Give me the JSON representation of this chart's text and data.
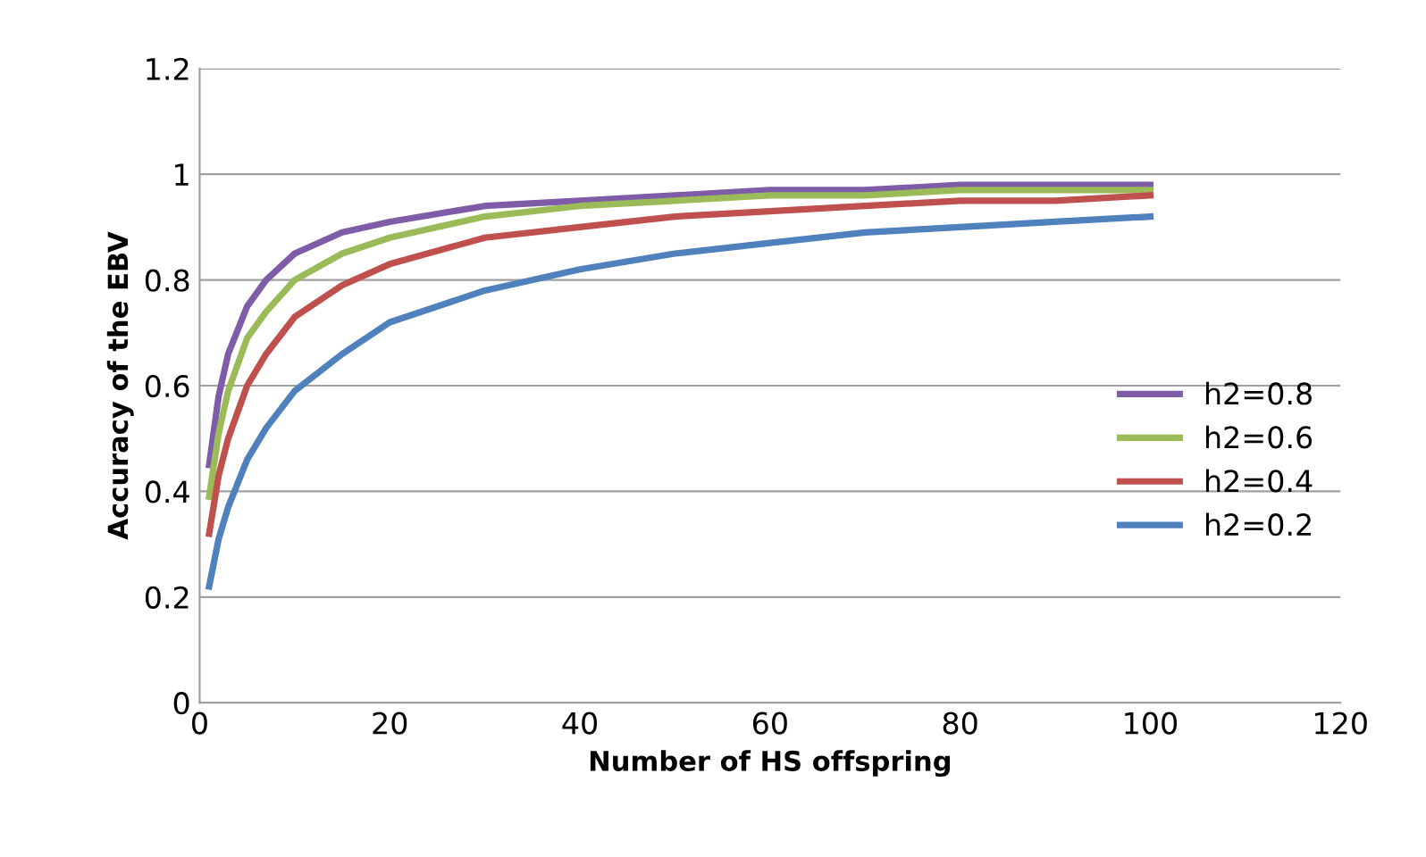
{
  "chart_data": {
    "type": "line",
    "xlabel": "Number of HS offspring",
    "ylabel": "Accuracy of the EBV",
    "x": [
      1,
      2,
      3,
      5,
      7,
      10,
      15,
      20,
      30,
      40,
      50,
      60,
      70,
      80,
      90,
      100
    ],
    "series": [
      {
        "name": "h2=0.8",
        "color": "#7e5ca8",
        "values": [
          0.45,
          0.58,
          0.66,
          0.75,
          0.8,
          0.85,
          0.89,
          0.91,
          0.94,
          0.95,
          0.96,
          0.97,
          0.97,
          0.98,
          0.98,
          0.98
        ]
      },
      {
        "name": "h2=0.6",
        "color": "#9bbb59",
        "values": [
          0.39,
          0.51,
          0.59,
          0.69,
          0.74,
          0.8,
          0.85,
          0.88,
          0.92,
          0.94,
          0.95,
          0.96,
          0.96,
          0.97,
          0.97,
          0.97
        ]
      },
      {
        "name": "h2=0.4",
        "color": "#c0504d",
        "values": [
          0.32,
          0.43,
          0.5,
          0.6,
          0.66,
          0.73,
          0.79,
          0.83,
          0.88,
          0.9,
          0.92,
          0.93,
          0.94,
          0.95,
          0.95,
          0.96
        ]
      },
      {
        "name": "h2=0.2",
        "color": "#4f81bd",
        "values": [
          0.22,
          0.31,
          0.37,
          0.46,
          0.52,
          0.59,
          0.66,
          0.72,
          0.78,
          0.82,
          0.85,
          0.87,
          0.89,
          0.9,
          0.91,
          0.92
        ]
      }
    ],
    "xlim": [
      0,
      120
    ],
    "xticks": [
      0,
      20,
      40,
      60,
      80,
      100,
      120
    ],
    "ylim": [
      0,
      1.2
    ],
    "yticks": [
      0,
      0.2,
      0.4,
      0.6,
      0.8,
      1,
      1.2
    ],
    "grid": "y",
    "legend": "right",
    "marker": "none",
    "line_style": "solid"
  }
}
